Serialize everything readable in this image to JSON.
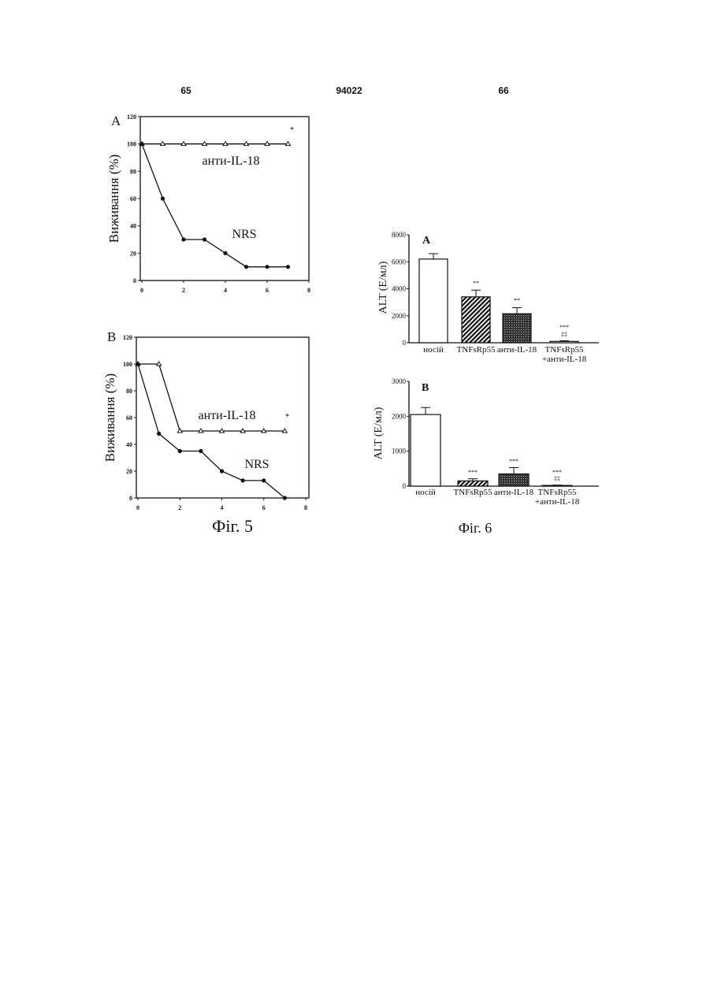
{
  "header": {
    "left": "65",
    "center": "94022",
    "right": "66"
  },
  "captions": [
    "Фіг. 5",
    "Фіг. 6"
  ],
  "chart_data": [
    {
      "type": "line",
      "panel": "A",
      "y_label": "Виживання (%)",
      "annotation": "*",
      "x": [
        0,
        1,
        2,
        3,
        4,
        5,
        6,
        7
      ],
      "xlim": [
        0,
        8
      ],
      "xticks": [
        0,
        2,
        4,
        6,
        8
      ],
      "ylim": [
        0,
        120
      ],
      "yticks": [
        0,
        20,
        40,
        60,
        80,
        100,
        120
      ],
      "series": [
        {
          "name": "анти-IL-18",
          "color": "#111111",
          "marker": "triangle",
          "values": [
            100,
            100,
            100,
            100,
            100,
            100,
            100,
            100
          ]
        },
        {
          "name": "NRS",
          "color": "#111111",
          "marker": "circle",
          "values": [
            100,
            60,
            30,
            30,
            20,
            10,
            10,
            10
          ]
        }
      ]
    },
    {
      "type": "line",
      "panel": "B",
      "y_label": "Виживання (%)",
      "annotation": "*",
      "x": [
        0,
        1,
        2,
        3,
        4,
        5,
        6,
        7
      ],
      "xlim": [
        0,
        8
      ],
      "xticks": [
        0,
        2,
        4,
        6,
        8
      ],
      "ylim": [
        0,
        120
      ],
      "yticks": [
        0,
        20,
        40,
        60,
        80,
        100,
        120
      ],
      "series": [
        {
          "name": "анти-IL-18",
          "color": "#111111",
          "marker": "triangle",
          "values": [
            100,
            100,
            50,
            50,
            50,
            50,
            50,
            50
          ]
        },
        {
          "name": "NRS",
          "color": "#111111",
          "marker": "circle",
          "values": [
            100,
            48,
            35,
            35,
            20,
            13,
            13,
            0
          ]
        }
      ]
    },
    {
      "type": "bar",
      "panel": "A",
      "y_label": "ALT (Е/мл)",
      "categories": [
        "носій",
        "TNFsRp55",
        "анти-IL-18",
        "TNFsRp55\n+анти-IL-18"
      ],
      "values": [
        6200,
        3400,
        2150,
        100
      ],
      "errors": [
        400,
        500,
        450,
        50
      ],
      "fills": [
        "white",
        "hatch",
        "stipple",
        "white"
      ],
      "significance": [
        null,
        "**",
        "**",
        "***\n‡‡"
      ],
      "ylim": [
        0,
        8000
      ],
      "yticks": [
        0,
        2000,
        4000,
        6000,
        8000
      ]
    },
    {
      "type": "bar",
      "panel": "B",
      "y_label": "ALT (Е/мл)",
      "categories": [
        "носій",
        "TNFsRp55",
        "анти-IL-18",
        "TNFsRp55\n+анти-IL-18"
      ],
      "values": [
        2050,
        150,
        350,
        20
      ],
      "errors": [
        200,
        60,
        180,
        10
      ],
      "fills": [
        "white",
        "hatch",
        "stipple",
        "white"
      ],
      "significance": [
        null,
        "***",
        "***",
        "***\n‡‡"
      ],
      "ylim": [
        0,
        3000
      ],
      "yticks": [
        0,
        1000,
        2000,
        3000
      ]
    }
  ]
}
